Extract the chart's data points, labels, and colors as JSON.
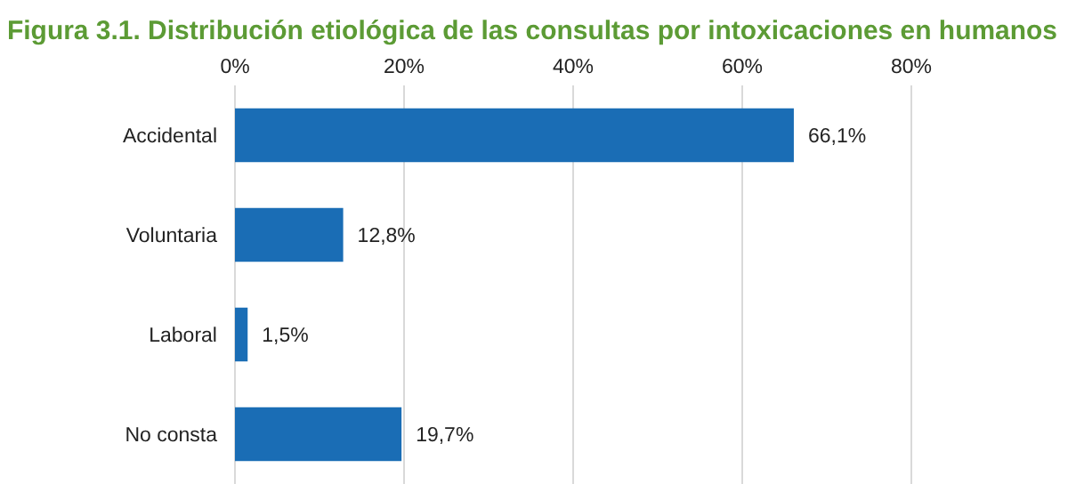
{
  "chart_data": {
    "type": "bar",
    "orientation": "horizontal",
    "title": "Figura 3.1. Distribución etiológica de las consultas por intoxicaciones en humanos",
    "categories": [
      "Accidental",
      "Voluntaria",
      "Laboral",
      "No consta"
    ],
    "values": [
      66.1,
      12.8,
      1.5,
      19.7
    ],
    "color": "#1a6db5",
    "value_labels": [
      "66,1%",
      "12,8%",
      "1,5%",
      "19,7%"
    ],
    "xlim": [
      0,
      80
    ],
    "xticks": [
      {
        "value": 0,
        "label": "0%"
      },
      {
        "value": 20,
        "label": "20%"
      },
      {
        "value": 40,
        "label": "40%"
      },
      {
        "value": 60,
        "label": "60%"
      },
      {
        "value": 80,
        "label": "80%"
      }
    ],
    "grid": "x"
  }
}
